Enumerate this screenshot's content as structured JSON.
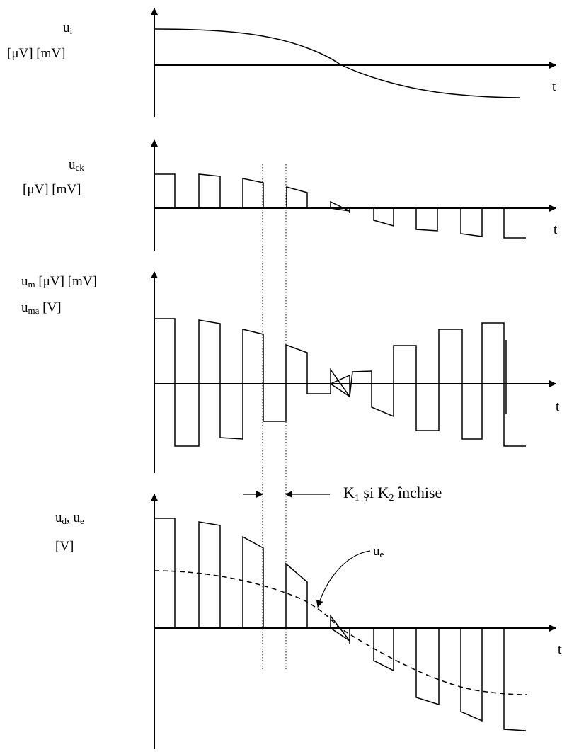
{
  "panels": [
    {
      "id": "ui",
      "symbol": "u",
      "subscript": "i",
      "units_line": "[μV]  [mV]",
      "time_label": "t"
    },
    {
      "id": "uck",
      "symbol": "u",
      "subscript": "ck",
      "units_line": "[μV]  [mV]",
      "time_label": "t"
    },
    {
      "id": "um",
      "symbol_1": "u",
      "subscript_1": "m",
      "units_1": " [μV] [mV]",
      "symbol_2": "u",
      "subscript_2": "ma",
      "units_2": " [V]",
      "time_label": "t"
    },
    {
      "id": "ud",
      "symbol_1": "u",
      "subscript_1": "d",
      "sep": ", u",
      "subscript_2": "e",
      "units_line": "[V]",
      "time_label": "t",
      "curve_label_symbol": "u",
      "curve_label_subscript": "e"
    }
  ],
  "switch_note": {
    "k1": "K",
    "k1_sub": "1",
    "mid": " și K",
    "k2_sub": "2",
    "tail": " închise"
  }
}
